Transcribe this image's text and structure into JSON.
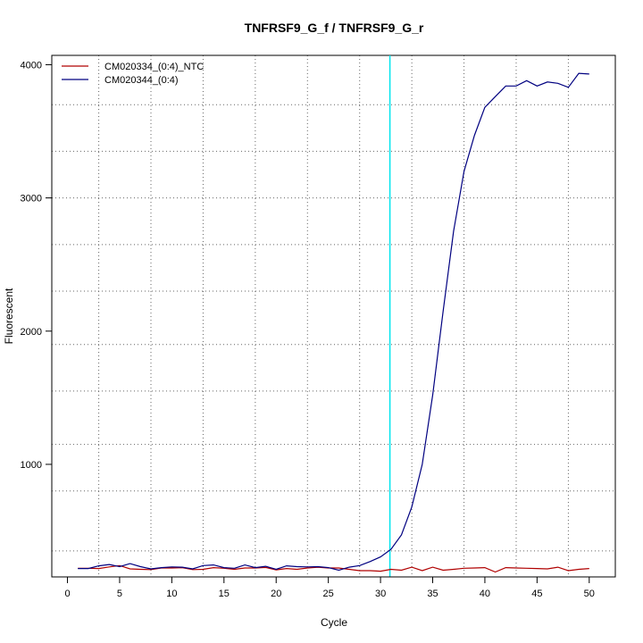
{
  "chart_data": {
    "type": "line",
    "title": "TNFRSF9_G_f / TNFRSF9_G_r",
    "xlabel": "Cycle",
    "ylabel": "Fluorescent",
    "xlim": [
      -1.5,
      52.5
    ],
    "ylim": [
      155,
      4070
    ],
    "xticks": [
      0,
      5,
      10,
      15,
      20,
      25,
      30,
      35,
      40,
      45,
      50
    ],
    "yticks": [
      1000,
      2000,
      3000,
      4000
    ],
    "grid": true,
    "grid_x": [
      3,
      8,
      13,
      18,
      23,
      28,
      33,
      38,
      43,
      48
    ],
    "grid_y": [
      350,
      800,
      1150,
      1550,
      1900,
      2300,
      2650,
      3000,
      3350,
      3700
    ],
    "legend_position": "top-left",
    "threshold_cycle": 30.9,
    "threshold_color": "#00e5ee",
    "series": [
      {
        "name": "CM020334_(0:4)_NTC",
        "color": "#b00000",
        "x": [
          1,
          2,
          3,
          4,
          5,
          6,
          7,
          8,
          9,
          10,
          11,
          12,
          13,
          14,
          15,
          16,
          17,
          18,
          19,
          20,
          21,
          22,
          23,
          24,
          25,
          26,
          27,
          28,
          29,
          30,
          31,
          32,
          33,
          34,
          35,
          36,
          37,
          38,
          39,
          40,
          41,
          42,
          43,
          44,
          45,
          46,
          47,
          48,
          49,
          50
        ],
        "y": [
          220,
          220,
          218,
          230,
          240,
          215,
          212,
          210,
          222,
          222,
          225,
          210,
          212,
          225,
          220,
          212,
          222,
          222,
          226,
          208,
          218,
          212,
          222,
          228,
          222,
          222,
          212,
          202,
          202,
          198,
          212,
          205,
          228,
          202,
          228,
          205,
          212,
          220,
          222,
          225,
          192,
          225,
          222,
          220,
          218,
          215,
          228,
          202,
          212,
          218
        ]
      },
      {
        "name": "CM020344_(0:4)",
        "color": "#000080",
        "x": [
          1,
          2,
          3,
          4,
          5,
          6,
          7,
          8,
          9,
          10,
          11,
          12,
          13,
          14,
          15,
          16,
          17,
          18,
          19,
          20,
          21,
          22,
          23,
          24,
          25,
          26,
          27,
          28,
          29,
          30,
          31,
          32,
          33,
          34,
          35,
          36,
          37,
          38,
          39,
          40,
          41,
          42,
          43,
          44,
          45,
          46,
          47,
          48,
          49,
          50
        ],
        "y": [
          218,
          218,
          238,
          248,
          232,
          255,
          232,
          215,
          225,
          230,
          228,
          215,
          240,
          245,
          225,
          220,
          245,
          225,
          235,
          212,
          238,
          232,
          230,
          232,
          225,
          205,
          228,
          240,
          270,
          305,
          362,
          470,
          680,
          1000,
          1520,
          2150,
          2750,
          3200,
          3470,
          3680,
          3760,
          3840,
          3840,
          3880,
          3840,
          3870,
          3860,
          3830,
          3935,
          3930
        ]
      }
    ]
  }
}
